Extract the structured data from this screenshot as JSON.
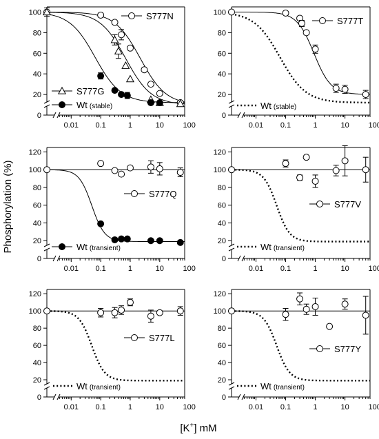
{
  "figure": {
    "ylabel": "Phosphorylation (%)",
    "xlabel_prefix": "[K",
    "xlabel_sup": "+",
    "xlabel_suffix": "] mM"
  },
  "chart_data": [
    {
      "type": "scatter",
      "panel": "S777N",
      "xlog": true,
      "xlim": [
        0.0015,
        70
      ],
      "xticks": [
        "0.01",
        "0.1",
        "1",
        "10",
        "100"
      ],
      "ylim": [
        0,
        105
      ],
      "yticks": [
        "0",
        "20",
        "40",
        "60",
        "80",
        "100"
      ],
      "axis_break": true,
      "grid": false,
      "series": [
        {
          "name": "S777N",
          "marker": "circle-open",
          "x": [
            0.0015,
            0.1,
            0.3,
            0.5,
            1,
            3,
            5,
            10,
            50
          ],
          "y": [
            100,
            97,
            90,
            78,
            65,
            44,
            30,
            21,
            12
          ],
          "err": [
            4,
            0,
            0,
            5,
            0,
            0,
            0,
            0,
            0
          ],
          "fit": {
            "top": 100,
            "bottom": 10,
            "ic50": 2.2,
            "hill": 1.0
          }
        },
        {
          "name": "S777G",
          "marker": "triangle-open",
          "x": [
            0.0015,
            0.3,
            0.4,
            0.7,
            1,
            5,
            10,
            50
          ],
          "y": [
            100,
            73,
            62,
            48,
            35,
            15,
            12,
            11
          ],
          "err": [
            0,
            5,
            7,
            0,
            0,
            0,
            0,
            0
          ],
          "fit": {
            "top": 100,
            "bottom": 10,
            "ic50": 0.7,
            "hill": 1.0
          }
        },
        {
          "name": "Wt",
          "sub": "(stable)",
          "marker": "circle-filled",
          "x": [
            0.1,
            0.3,
            0.5,
            0.8,
            5,
            10
          ],
          "y": [
            38,
            24,
            20,
            19,
            12,
            12
          ],
          "err": [
            3,
            0,
            0,
            3,
            0,
            0
          ],
          "fit": {
            "top": 100,
            "bottom": 12,
            "ic50": 0.065,
            "hill": 1.0
          }
        }
      ]
    },
    {
      "type": "scatter",
      "panel": "S777T",
      "xlog": true,
      "xlim": [
        0.0015,
        70
      ],
      "xticks": [
        "0.01",
        "0.1",
        "1",
        "10",
        "100"
      ],
      "ylim": [
        0,
        105
      ],
      "yticks": [
        "0",
        "20",
        "40",
        "60",
        "80",
        "100"
      ],
      "axis_break": true,
      "grid": false,
      "series": [
        {
          "name": "S777T",
          "marker": "circle-open",
          "x": [
            0.0015,
            0.1,
            0.3,
            0.35,
            0.5,
            1,
            5,
            10,
            50
          ],
          "y": [
            100,
            99,
            94,
            89,
            80,
            64,
            26,
            25,
            20
          ],
          "err": [
            0,
            0,
            0,
            3,
            0,
            4,
            4,
            4,
            4
          ],
          "fit": {
            "top": 100,
            "bottom": 20,
            "ic50": 0.9,
            "hill": 1.5
          }
        },
        {
          "name": "Wt",
          "sub": "(stable)",
          "marker": "dotted-line",
          "fit": {
            "top": 100,
            "bottom": 12,
            "ic50": 0.065,
            "hill": 1.0
          }
        }
      ]
    },
    {
      "type": "scatter",
      "panel": "S777Q",
      "xlog": true,
      "xlim": [
        0.0015,
        70
      ],
      "xticks": [
        "0.01",
        "0.1",
        "1",
        "10",
        "100"
      ],
      "ylim": [
        0,
        125
      ],
      "yticks": [
        "0",
        "20",
        "40",
        "60",
        "80",
        "100",
        "120"
      ],
      "axis_break": true,
      "grid": false,
      "series": [
        {
          "name": "S777Q",
          "marker": "circle-open",
          "x": [
            0.0015,
            0.1,
            0.3,
            0.5,
            1,
            5,
            10,
            50
          ],
          "y": [
            100,
            107,
            99,
            95,
            102,
            103,
            101,
            97
          ],
          "err": [
            0,
            0,
            0,
            0,
            0,
            7,
            7,
            5
          ],
          "fit": {
            "flat": 100
          }
        },
        {
          "name": "Wt",
          "sub": "(transient)",
          "marker": "circle-filled",
          "x": [
            0.1,
            0.3,
            0.5,
            0.8,
            5,
            10,
            50
          ],
          "y": [
            39,
            21,
            22,
            22,
            20,
            20,
            18
          ],
          "err": [
            0,
            0,
            0,
            0,
            0,
            0,
            0
          ],
          "fit": {
            "top": 100,
            "bottom": 19,
            "ic50": 0.05,
            "hill": 2.0
          }
        }
      ]
    },
    {
      "type": "scatter",
      "panel": "S777V",
      "xlog": true,
      "xlim": [
        0.0015,
        70
      ],
      "xticks": [
        "0.01",
        "0.1",
        "1",
        "10",
        "100"
      ],
      "ylim": [
        0,
        125
      ],
      "yticks": [
        "0",
        "20",
        "40",
        "60",
        "80",
        "100",
        "120"
      ],
      "axis_break": true,
      "grid": false,
      "series": [
        {
          "name": "S777V",
          "marker": "circle-open",
          "x": [
            0.0015,
            0.1,
            0.3,
            0.5,
            1,
            5,
            10,
            50
          ],
          "y": [
            100,
            107,
            91,
            114,
            87,
            99,
            110,
            100
          ],
          "err": [
            0,
            4,
            3,
            0,
            7,
            6,
            17,
            14
          ],
          "fit": {
            "flat": 100
          }
        },
        {
          "name": "Wt",
          "sub": "(transient)",
          "marker": "dotted-line",
          "fit": {
            "top": 100,
            "bottom": 19,
            "ic50": 0.05,
            "hill": 2.0
          }
        }
      ]
    },
    {
      "type": "scatter",
      "panel": "S777L",
      "xlog": true,
      "xlim": [
        0.0015,
        70
      ],
      "xticks": [
        "0.01",
        "0.1",
        "1",
        "10",
        "100"
      ],
      "ylim": [
        0,
        125
      ],
      "yticks": [
        "0",
        "20",
        "40",
        "60",
        "80",
        "100",
        "120"
      ],
      "axis_break": true,
      "grid": false,
      "series": [
        {
          "name": "S777L",
          "marker": "circle-open",
          "x": [
            0.0015,
            0.1,
            0.3,
            0.5,
            1,
            5,
            10,
            50
          ],
          "y": [
            100,
            98,
            98,
            101,
            110,
            94,
            98,
            100
          ],
          "err": [
            0,
            5,
            6,
            5,
            4,
            7,
            0,
            5
          ],
          "fit": {
            "flat": 100
          }
        },
        {
          "name": "Wt",
          "sub": "(transient)",
          "marker": "dotted-line",
          "fit": {
            "top": 100,
            "bottom": 19,
            "ic50": 0.05,
            "hill": 2.0
          }
        }
      ]
    },
    {
      "type": "scatter",
      "panel": "S777Y",
      "xlog": true,
      "xlim": [
        0.0015,
        70
      ],
      "xticks": [
        "0.01",
        "0.1",
        "1",
        "10",
        "100"
      ],
      "ylim": [
        0,
        125
      ],
      "yticks": [
        "0",
        "20",
        "40",
        "60",
        "80",
        "100",
        "120"
      ],
      "axis_break": true,
      "grid": false,
      "series": [
        {
          "name": "S777Y",
          "marker": "circle-open",
          "x": [
            0.0015,
            0.1,
            0.3,
            0.5,
            1,
            3,
            10,
            50
          ],
          "y": [
            100,
            96,
            114,
            102,
            105,
            82,
            108,
            95
          ],
          "err": [
            0,
            7,
            7,
            6,
            10,
            0,
            6,
            22
          ],
          "fit": {
            "flat": 100
          }
        },
        {
          "name": "Wt",
          "sub": "(transient)",
          "marker": "dotted-line",
          "fit": {
            "top": 100,
            "bottom": 19,
            "ic50": 0.05,
            "hill": 2.0
          }
        }
      ]
    }
  ]
}
